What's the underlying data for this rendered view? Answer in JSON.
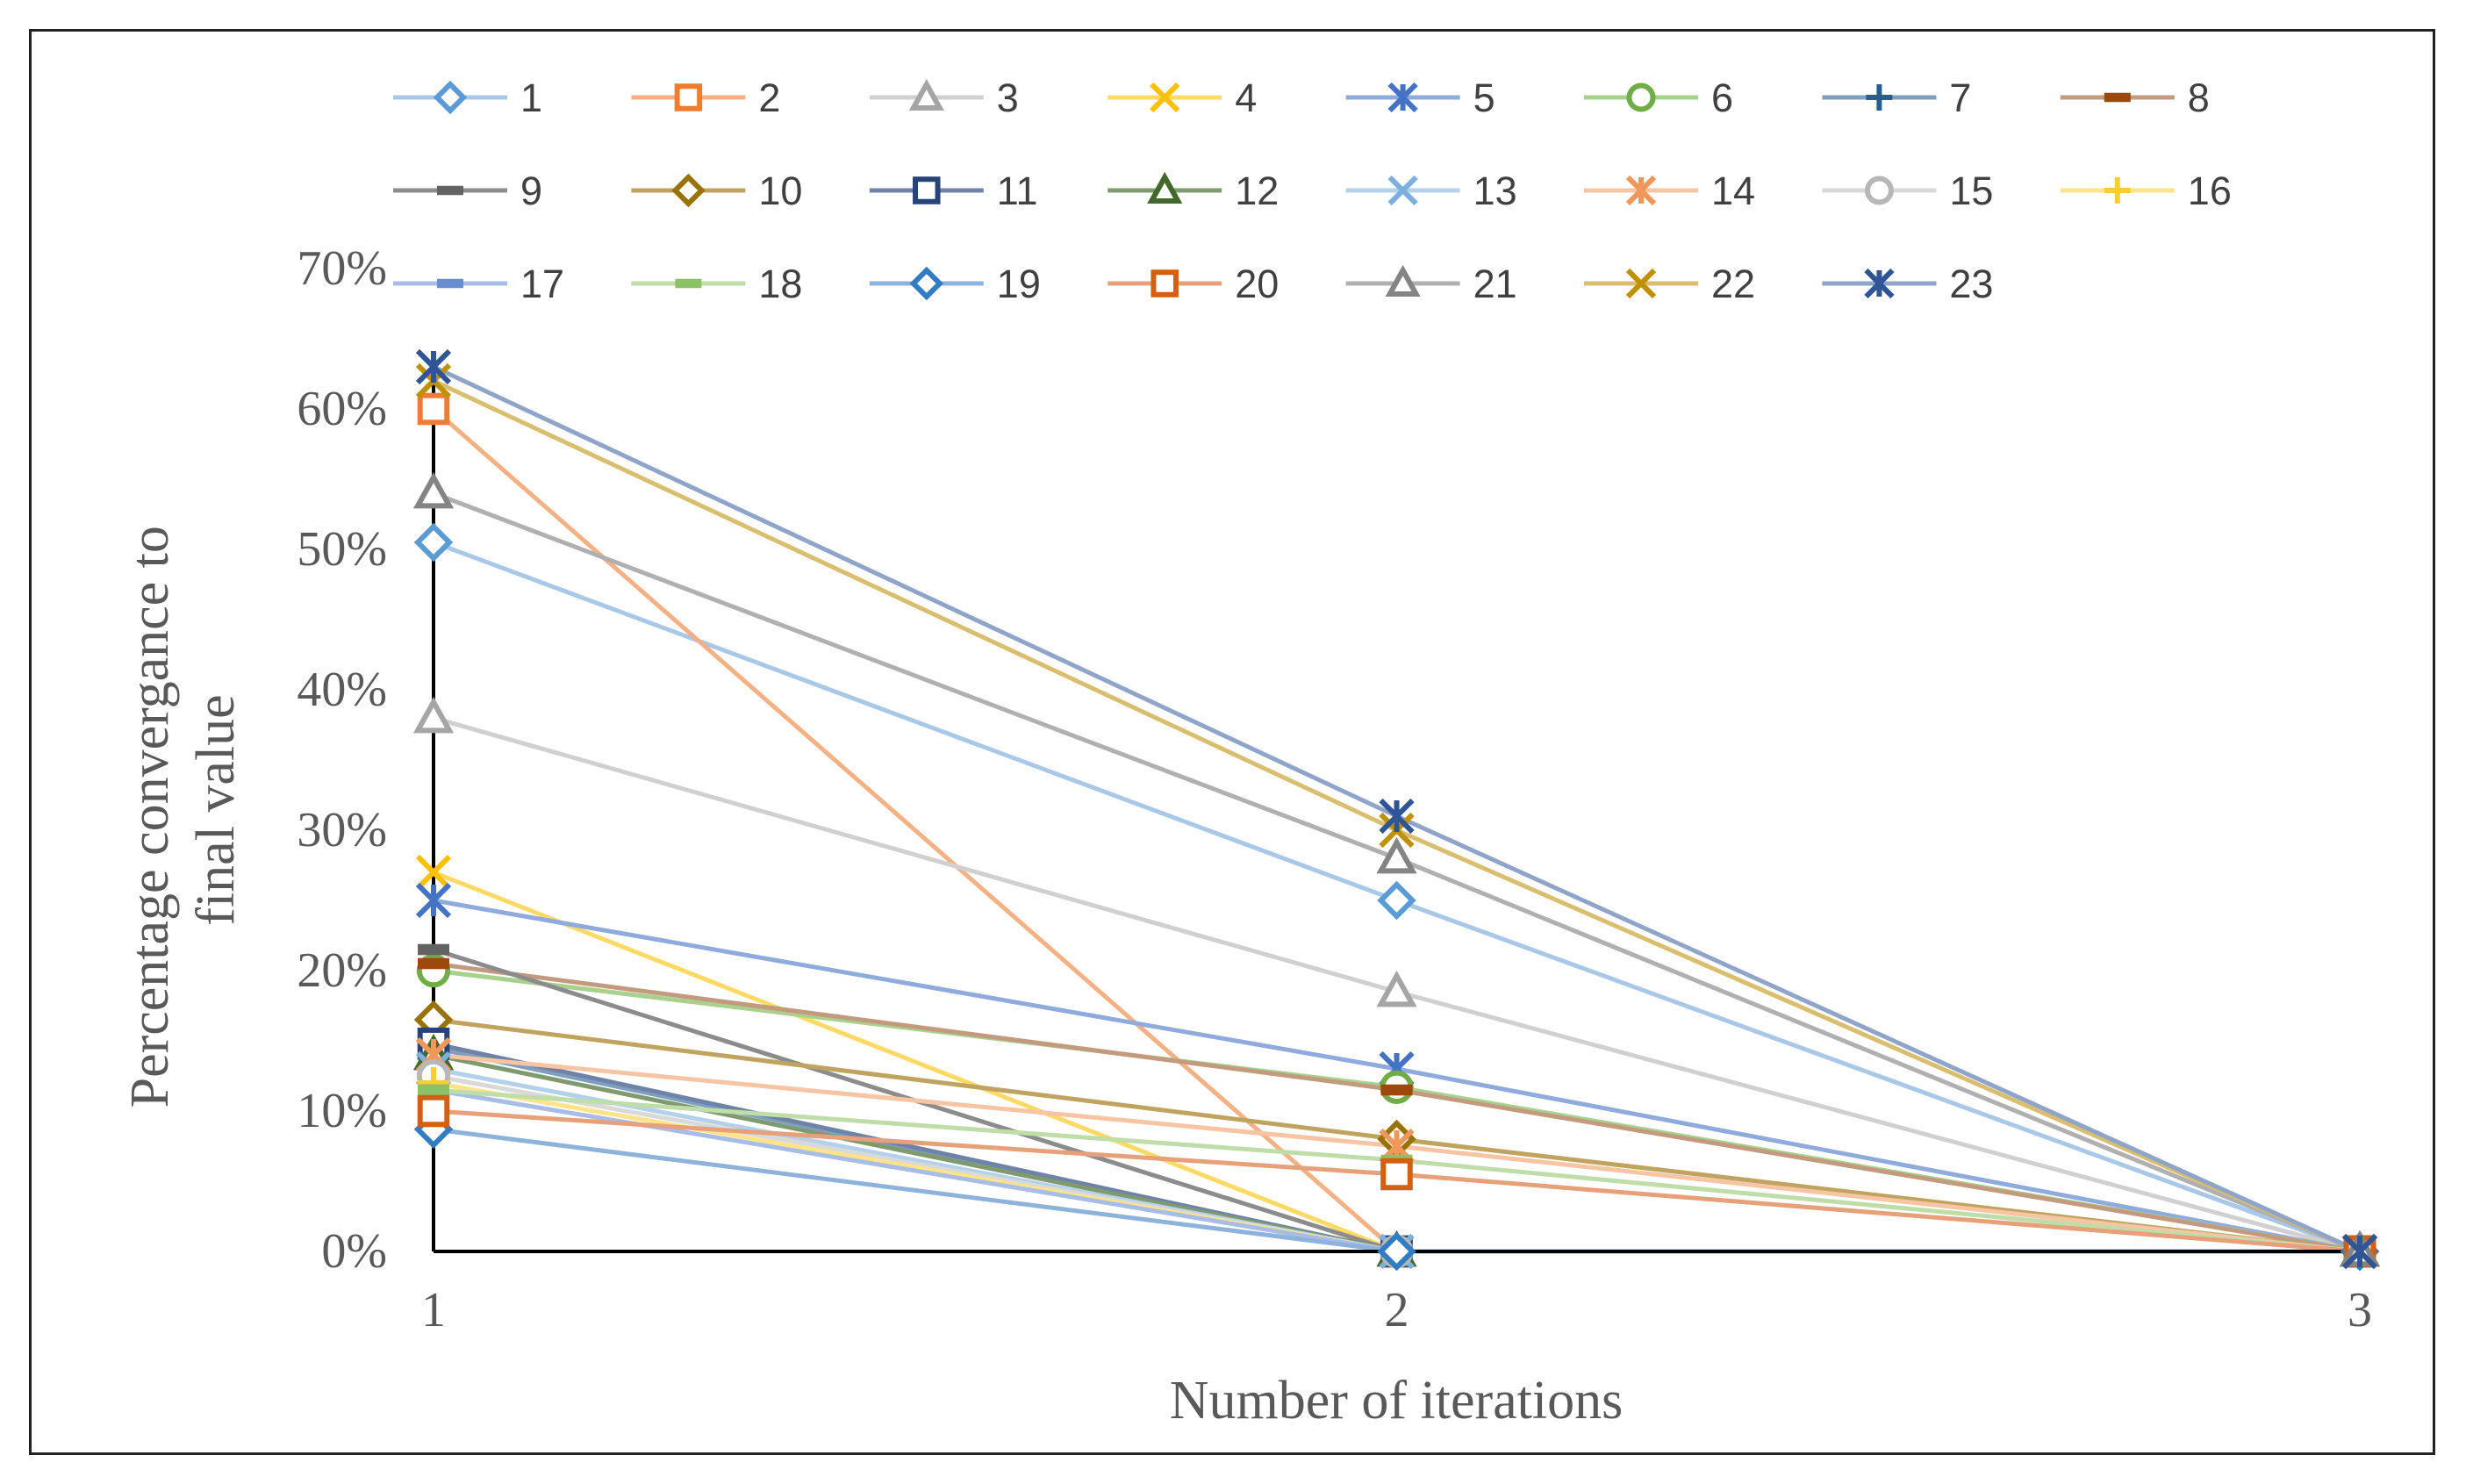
{
  "chart_data": {
    "type": "line",
    "title": "",
    "xlabel": "Number of iterations",
    "ylabel_lines": [
      "Percentage convergance to",
      "final value"
    ],
    "x": [
      1,
      2,
      3
    ],
    "x_tick_labels": [
      "1",
      "2",
      "3"
    ],
    "ylim": [
      0,
      0.7
    ],
    "y_ticks": [
      0,
      0.1,
      0.2,
      0.3,
      0.4,
      0.5,
      0.6,
      0.7
    ],
    "y_tick_labels": [
      "0%",
      "10%",
      "20%",
      "30%",
      "40%",
      "50%",
      "60%",
      "70%"
    ],
    "grid": false,
    "legend_position": "top",
    "series": [
      {
        "name": "1",
        "marker": "diamond",
        "color": "#5B9BD5",
        "line": "#A9C8E8",
        "values": [
          0.505,
          0.25,
          0
        ]
      },
      {
        "name": "2",
        "marker": "square",
        "color": "#ED7D31",
        "line": "#F4B183",
        "values": [
          0.6,
          0.0,
          0
        ]
      },
      {
        "name": "3",
        "marker": "triangle",
        "color": "#A5A5A5",
        "line": "#D0D0D0",
        "values": [
          0.38,
          0.185,
          0
        ]
      },
      {
        "name": "4",
        "marker": "x",
        "color": "#FFC000",
        "line": "#FFD966",
        "values": [
          0.27,
          0.0,
          0
        ]
      },
      {
        "name": "5",
        "marker": "star",
        "color": "#4472C4",
        "line": "#8FAADC",
        "values": [
          0.25,
          0.13,
          0
        ]
      },
      {
        "name": "6",
        "marker": "circle",
        "color": "#70AD47",
        "line": "#A9D18E",
        "values": [
          0.2,
          0.117,
          0
        ]
      },
      {
        "name": "7",
        "marker": "plus",
        "color": "#255E91",
        "line": "#7F9FBF",
        "values": [
          0.145,
          0.0,
          0
        ]
      },
      {
        "name": "8",
        "marker": "dash",
        "color": "#9E480E",
        "line": "#C39A7E",
        "values": [
          0.205,
          0.115,
          0
        ]
      },
      {
        "name": "9",
        "marker": "dash",
        "color": "#636363",
        "line": "#8C8C8C",
        "values": [
          0.215,
          0.0,
          0
        ]
      },
      {
        "name": "10",
        "marker": "diamond",
        "color": "#997300",
        "line": "#BFA35F",
        "values": [
          0.165,
          0.08,
          0
        ]
      },
      {
        "name": "11",
        "marker": "square",
        "color": "#264478",
        "line": "#6F83A8",
        "values": [
          0.148,
          0.0,
          0
        ]
      },
      {
        "name": "12",
        "marker": "triangle",
        "color": "#43682B",
        "line": "#7F9A6E",
        "values": [
          0.14,
          0.0,
          0
        ]
      },
      {
        "name": "13",
        "marker": "x",
        "color": "#7CAFDD",
        "line": "#B4D1EC",
        "values": [
          0.13,
          0.0,
          0
        ]
      },
      {
        "name": "14",
        "marker": "star",
        "color": "#F1975A",
        "line": "#F7C5A4",
        "values": [
          0.14,
          0.075,
          0
        ]
      },
      {
        "name": "15",
        "marker": "circle",
        "color": "#B7B7B7",
        "line": "#D9D9D9",
        "values": [
          0.125,
          0.0,
          0
        ]
      },
      {
        "name": "16",
        "marker": "plus",
        "color": "#FFCD33",
        "line": "#FFE38A",
        "values": [
          0.12,
          0.0,
          0
        ]
      },
      {
        "name": "17",
        "marker": "dash",
        "color": "#698ED0",
        "line": "#A7BDE5",
        "values": [
          0.115,
          0.0,
          0
        ]
      },
      {
        "name": "18",
        "marker": "dash",
        "color": "#8CC168",
        "line": "#BEDDA8",
        "values": [
          0.115,
          0.065,
          0
        ]
      },
      {
        "name": "19",
        "marker": "diamond",
        "color": "#327DC2",
        "line": "#8DB3DB",
        "values": [
          0.087,
          0.0,
          0
        ]
      },
      {
        "name": "20",
        "marker": "square",
        "color": "#D26012",
        "line": "#E6A07A",
        "values": [
          0.1,
          0.055,
          0
        ]
      },
      {
        "name": "21",
        "marker": "triangle",
        "color": "#848484",
        "line": "#B0B0B0",
        "values": [
          0.54,
          0.28,
          0
        ]
      },
      {
        "name": "22",
        "marker": "x",
        "color": "#BF9000",
        "line": "#D9BE70",
        "values": [
          0.62,
          0.3,
          0
        ]
      },
      {
        "name": "23",
        "marker": "star",
        "color": "#2F5597",
        "line": "#8FA4C9",
        "values": [
          0.63,
          0.31,
          0
        ]
      }
    ]
  }
}
